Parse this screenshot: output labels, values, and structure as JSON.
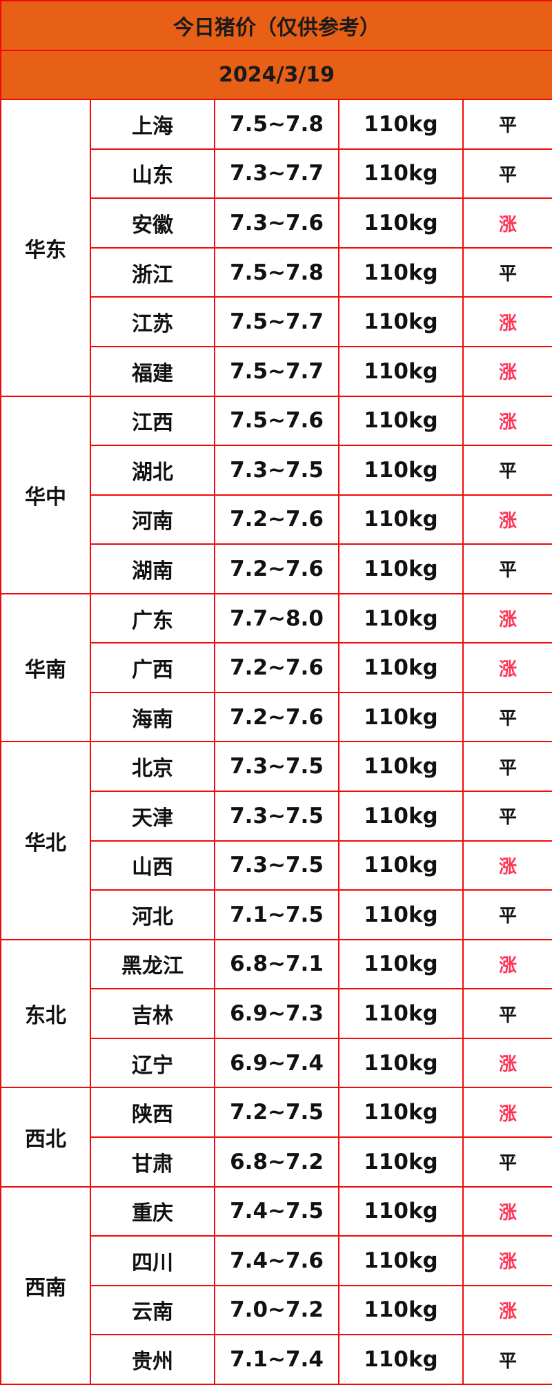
{
  "title": "今日猪价（仅供参考）",
  "date": "2024/3/19",
  "colors": {
    "header_bg": "#e86016",
    "border": "#f00a0a",
    "rise": "#ff3355",
    "flat": "#111111"
  },
  "regions": [
    {
      "name": "华东",
      "rows": [
        {
          "province": "上海",
          "price": "7.5~7.8",
          "weight": "110kg",
          "trend": "平"
        },
        {
          "province": "山东",
          "price": "7.3~7.7",
          "weight": "110kg",
          "trend": "平"
        },
        {
          "province": "安徽",
          "price": "7.3~7.6",
          "weight": "110kg",
          "trend": "涨"
        },
        {
          "province": "浙江",
          "price": "7.5~7.8",
          "weight": "110kg",
          "trend": "平"
        },
        {
          "province": "江苏",
          "price": "7.5~7.7",
          "weight": "110kg",
          "trend": "涨"
        },
        {
          "province": "福建",
          "price": "7.5~7.7",
          "weight": "110kg",
          "trend": "涨"
        }
      ]
    },
    {
      "name": "华中",
      "rows": [
        {
          "province": "江西",
          "price": "7.5~7.6",
          "weight": "110kg",
          "trend": "涨"
        },
        {
          "province": "湖北",
          "price": "7.3~7.5",
          "weight": "110kg",
          "trend": "平"
        },
        {
          "province": "河南",
          "price": "7.2~7.6",
          "weight": "110kg",
          "trend": "涨"
        },
        {
          "province": "湖南",
          "price": "7.2~7.6",
          "weight": "110kg",
          "trend": "平"
        }
      ]
    },
    {
      "name": "华南",
      "rows": [
        {
          "province": "广东",
          "price": "7.7~8.0",
          "weight": "110kg",
          "trend": "涨"
        },
        {
          "province": "广西",
          "price": "7.2~7.6",
          "weight": "110kg",
          "trend": "涨"
        },
        {
          "province": "海南",
          "price": "7.2~7.6",
          "weight": "110kg",
          "trend": "平"
        }
      ]
    },
    {
      "name": "华北",
      "rows": [
        {
          "province": "北京",
          "price": "7.3~7.5",
          "weight": "110kg",
          "trend": "平"
        },
        {
          "province": "天津",
          "price": "7.3~7.5",
          "weight": "110kg",
          "trend": "平"
        },
        {
          "province": "山西",
          "price": "7.3~7.5",
          "weight": "110kg",
          "trend": "涨"
        },
        {
          "province": "河北",
          "price": "7.1~7.5",
          "weight": "110kg",
          "trend": "平"
        }
      ]
    },
    {
      "name": "东北",
      "rows": [
        {
          "province": "黑龙江",
          "price": "6.8~7.1",
          "weight": "110kg",
          "trend": "涨"
        },
        {
          "province": "吉林",
          "price": "6.9~7.3",
          "weight": "110kg",
          "trend": "平"
        },
        {
          "province": "辽宁",
          "price": "6.9~7.4",
          "weight": "110kg",
          "trend": "涨"
        }
      ]
    },
    {
      "name": "西北",
      "rows": [
        {
          "province": "陕西",
          "price": "7.2~7.5",
          "weight": "110kg",
          "trend": "涨"
        },
        {
          "province": "甘肃",
          "price": "6.8~7.2",
          "weight": "110kg",
          "trend": "平"
        }
      ]
    },
    {
      "name": "西南",
      "rows": [
        {
          "province": "重庆",
          "price": "7.4~7.5",
          "weight": "110kg",
          "trend": "涨"
        },
        {
          "province": "四川",
          "price": "7.4~7.6",
          "weight": "110kg",
          "trend": "涨"
        },
        {
          "province": "云南",
          "price": "7.0~7.2",
          "weight": "110kg",
          "trend": "涨"
        },
        {
          "province": "贵州",
          "price": "7.1~7.4",
          "weight": "110kg",
          "trend": "平"
        }
      ]
    }
  ]
}
